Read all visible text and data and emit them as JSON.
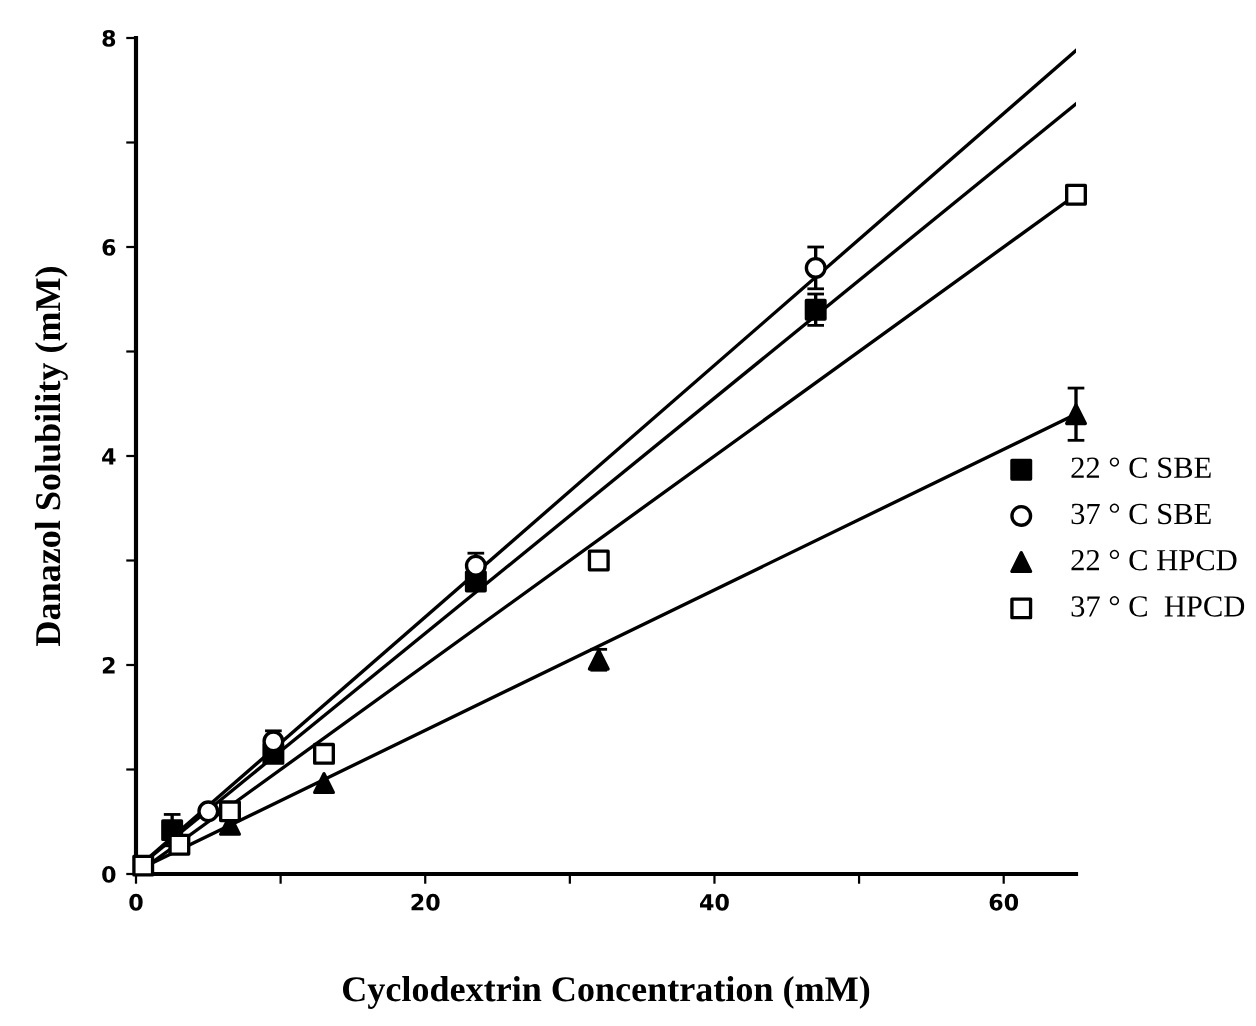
{
  "chart_data": {
    "type": "scatter",
    "xlabel": "Cyclodextrin Concentration (mM)",
    "ylabel": "Danazol Solubility (mM)",
    "xlim": [
      0,
      65
    ],
    "ylim": [
      0,
      8
    ],
    "xticks": [
      0,
      {
        "value": 10,
        "label": null
      },
      20,
      {
        "value": 30,
        "label": null
      },
      40,
      {
        "value": 50,
        "label": null
      },
      60
    ],
    "yticks": [
      0,
      {
        "value": 1,
        "label": null
      },
      2,
      {
        "value": 3,
        "label": null
      },
      4,
      {
        "value": 5,
        "label": null
      },
      6,
      {
        "value": 7,
        "label": null
      },
      8
    ],
    "grid": false,
    "legend": "right",
    "series": [
      {
        "name": "22 ° C SBE",
        "marker": "square",
        "color": "#000000",
        "x": [
          2.5,
          9.5,
          23.5,
          47
        ],
        "values": [
          0.42,
          1.15,
          2.8,
          5.4
        ],
        "errors": [
          0.15,
          null,
          null,
          0.15
        ]
      },
      {
        "name": "37 ° C SBE",
        "marker": "circle",
        "color": "#000000",
        "x": [
          5,
          9.5,
          23.5,
          47
        ],
        "values": [
          0.6,
          1.27,
          2.95,
          5.8
        ],
        "errors": [
          null,
          0.1,
          0.12,
          0.2
        ]
      },
      {
        "name": "22 ° C HPCD",
        "marker": "triangle",
        "color": "#000000",
        "x": [
          6.5,
          13,
          32,
          65
        ],
        "values": [
          0.47,
          0.87,
          2.05,
          4.4
        ],
        "errors": [
          null,
          null,
          0.1,
          0.25
        ]
      },
      {
        "name": "37 ° C  HPCD",
        "marker": "square",
        "color": "#000000",
        "x": [
          0.5,
          3,
          6.5,
          13,
          32,
          65
        ],
        "values": [
          0.08,
          0.28,
          0.6,
          1.15,
          3.0,
          6.5
        ],
        "errors": [
          null,
          null,
          null,
          null,
          null,
          null
        ]
      },
      {
        "type": "line",
        "color": "#000000",
        "x": [
          0,
          65
        ],
        "values": [
          0.05,
          7.37
        ]
      },
      {
        "type": "line",
        "color": "#000000",
        "x": [
          0,
          65
        ],
        "values": [
          0.05,
          7.88
        ]
      },
      {
        "type": "line",
        "color": "#000000",
        "x": [
          0,
          65
        ],
        "values": [
          0.03,
          4.4
        ]
      },
      {
        "type": "line",
        "color": "#000000",
        "x": [
          0,
          65
        ],
        "values": [
          0.0,
          6.5
        ]
      }
    ]
  }
}
